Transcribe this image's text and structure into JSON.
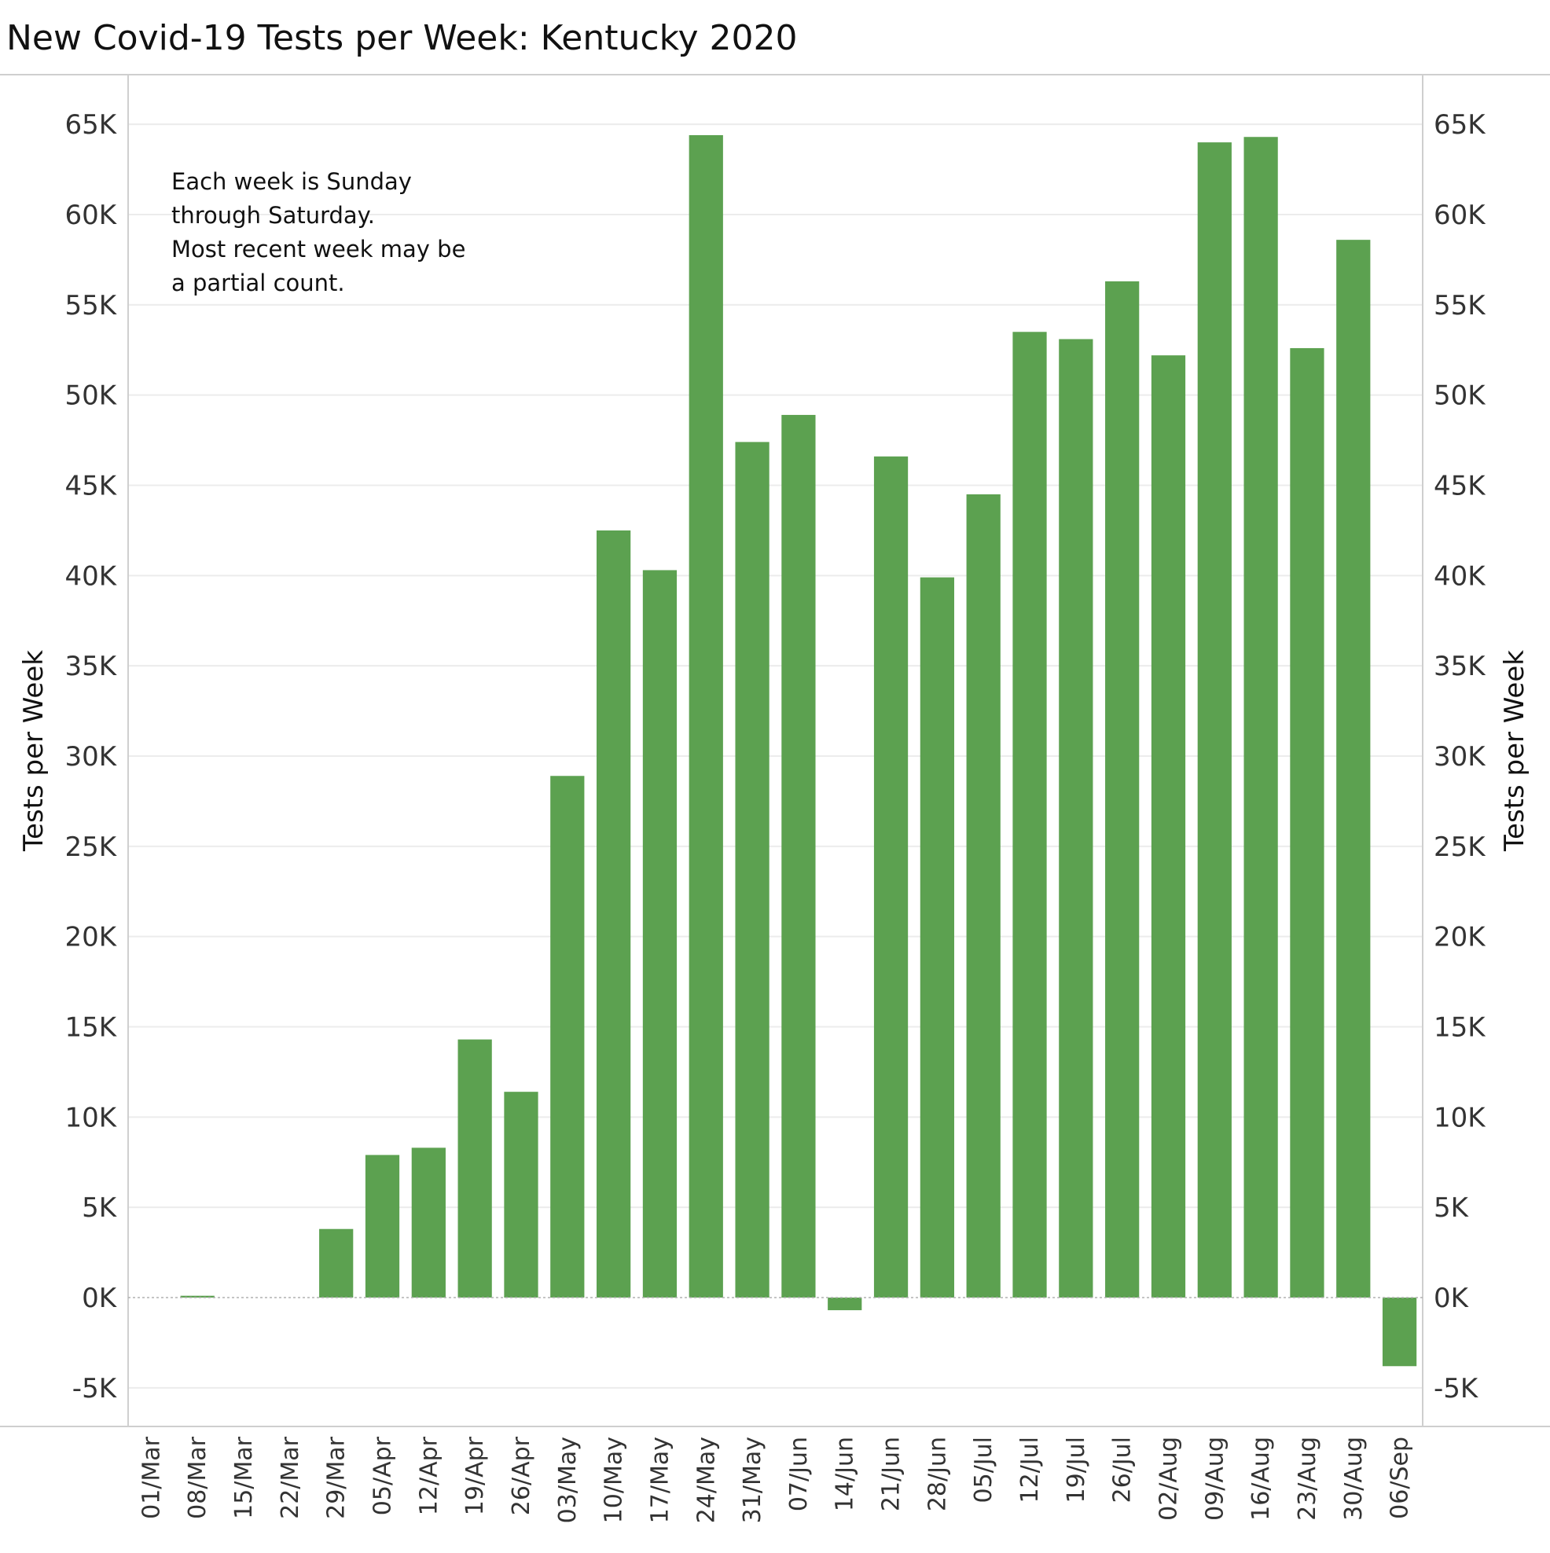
{
  "title": "New Covid-19 Tests per Week:  Kentucky 2020",
  "note_lines": [
    "Each week is Sunday",
    "through Saturday.",
    "Most recent week may be",
    "a partial count."
  ],
  "colors": {
    "bar": "#5ca150",
    "grid": "#ececec",
    "axis": "#cfcfcf",
    "zero_line": "#b0b0b0"
  },
  "chart_data": {
    "type": "bar",
    "title": "New Covid-19 Tests per Week:  Kentucky 2020",
    "xlabel": "",
    "ylabel": "Tests per Week",
    "ylabel_right": "Tests per Week",
    "ylim": [
      -7200,
      67800
    ],
    "yticks": [
      "65K",
      "60K",
      "55K",
      "50K",
      "45K",
      "40K",
      "35K",
      "30K",
      "25K",
      "20K",
      "15K",
      "10K",
      "5K",
      "0K",
      "-5K"
    ],
    "ytick_values": [
      65000,
      60000,
      55000,
      50000,
      45000,
      40000,
      35000,
      30000,
      25000,
      20000,
      15000,
      10000,
      5000,
      0,
      -5000
    ],
    "grid": true,
    "categories": [
      "01/Mar",
      "08/Mar",
      "15/Mar",
      "22/Mar",
      "29/Mar",
      "05/Apr",
      "12/Apr",
      "19/Apr",
      "26/Apr",
      "03/May",
      "10/May",
      "17/May",
      "24/May",
      "31/May",
      "07/Jun",
      "14/Jun",
      "21/Jun",
      "28/Jun",
      "05/Jul",
      "12/Jul",
      "19/Jul",
      "26/Jul",
      "02/Aug",
      "09/Aug",
      "16/Aug",
      "23/Aug",
      "30/Aug",
      "06/Sep"
    ],
    "values": [
      0,
      100,
      0,
      0,
      3800,
      7900,
      8300,
      14300,
      11400,
      28900,
      42500,
      40300,
      64400,
      47400,
      48900,
      -700,
      46600,
      39900,
      44500,
      53500,
      53100,
      56300,
      52200,
      64000,
      64300,
      52600,
      58600,
      -3800
    ]
  }
}
